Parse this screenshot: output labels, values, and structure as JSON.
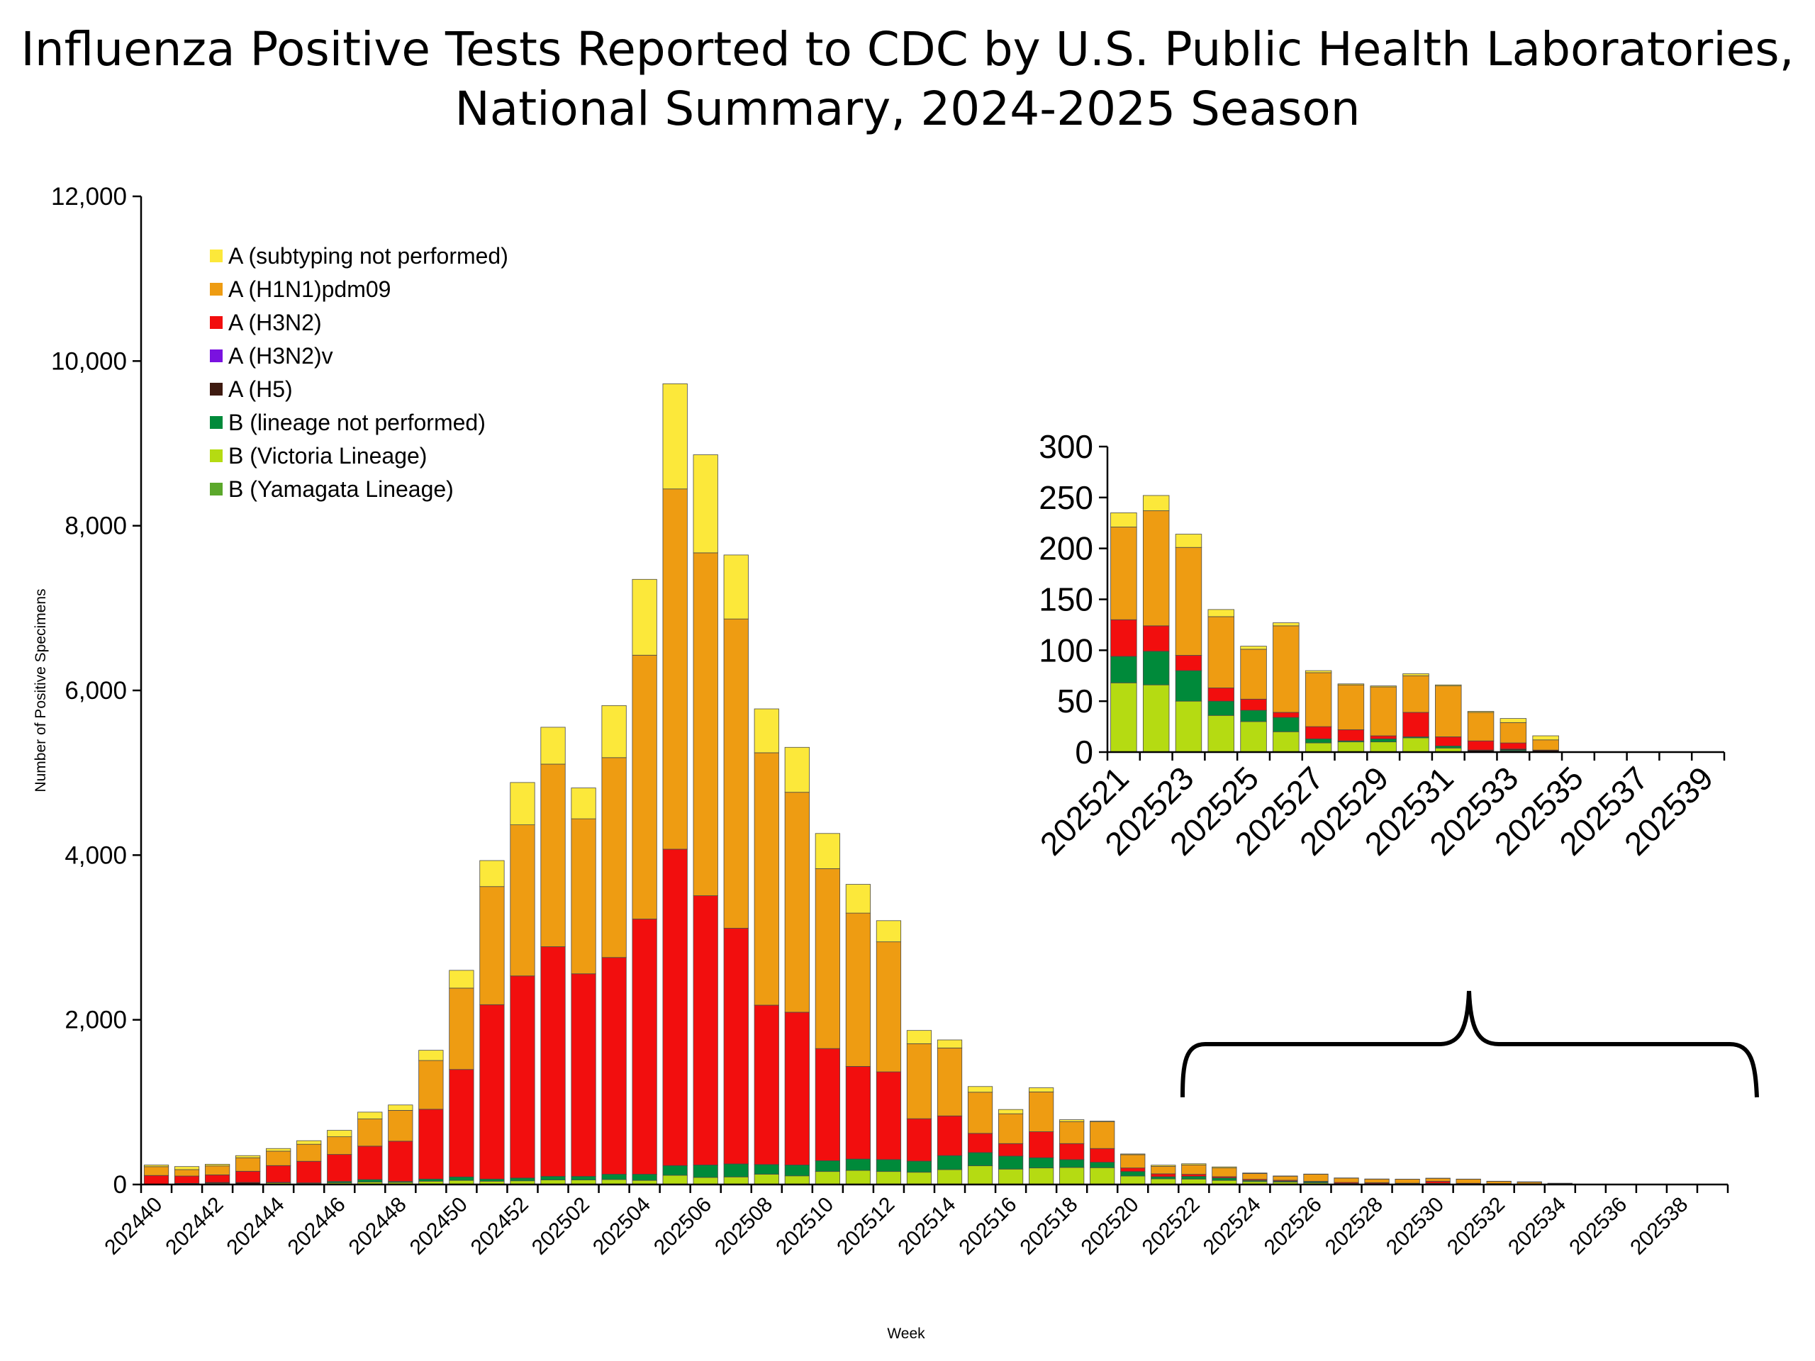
{
  "title": {
    "line1": "Influenza Positive Tests Reported to CDC by U.S. Public Health Laboratories,",
    "line2": "National Summary, 2024-2025 Season"
  },
  "chart_data": [
    {
      "type": "bar",
      "stacked": true,
      "xlabel": "Week",
      "ylabel": "Number of Positive Specimens",
      "ylim": [
        0,
        12000
      ],
      "yticks": [
        0,
        2000,
        4000,
        6000,
        8000,
        10000,
        12000
      ],
      "legend_position": "top-left",
      "grid": false,
      "categories": [
        "202440",
        "202441",
        "202442",
        "202443",
        "202444",
        "202445",
        "202446",
        "202447",
        "202448",
        "202449",
        "202450",
        "202451",
        "202452",
        "202501",
        "202502",
        "202503",
        "202504",
        "202505",
        "202506",
        "202507",
        "202508",
        "202509",
        "202510",
        "202511",
        "202512",
        "202513",
        "202514",
        "202515",
        "202516",
        "202517",
        "202518",
        "202519",
        "202520",
        "202521",
        "202522",
        "202523",
        "202524",
        "202525",
        "202526",
        "202527",
        "202528",
        "202529",
        "202530",
        "202531",
        "202532",
        "202533",
        "202534",
        "202535",
        "202536",
        "202537",
        "202538",
        "202539"
      ],
      "series": [
        {
          "name": "B (Victoria Lineage)",
          "color": "#B5DB12",
          "values": [
            3,
            4,
            15,
            5,
            20,
            15,
            20,
            30,
            25,
            40,
            50,
            40,
            45,
            55,
            55,
            60,
            50,
            112,
            86,
            92,
            125,
            105,
            158,
            171,
            158,
            149,
            181,
            227,
            187,
            201,
            207,
            204,
            103,
            68,
            66,
            50,
            36,
            30,
            20,
            9,
            10,
            10,
            14,
            4,
            0,
            1,
            0,
            0,
            0,
            0,
            0,
            0
          ]
        },
        {
          "name": "B (Yamagata Lineage)",
          "color": "#5BA82B",
          "values": [
            0,
            0,
            0,
            0,
            0,
            0,
            0,
            0,
            0,
            0,
            0,
            0,
            0,
            0,
            0,
            0,
            0,
            0,
            0,
            0,
            0,
            0,
            0,
            0,
            0,
            0,
            0,
            0,
            0,
            0,
            0,
            0,
            0,
            0,
            0,
            0,
            0,
            0,
            0,
            0,
            0,
            0,
            0,
            0,
            0,
            0,
            0,
            0,
            0,
            0,
            0,
            0
          ]
        },
        {
          "name": "B (lineage not performed)",
          "color": "#008A3A",
          "values": [
            2,
            0,
            0,
            0,
            6,
            5,
            17,
            30,
            12,
            26,
            42,
            26,
            34,
            44,
            44,
            65,
            75,
            118,
            151,
            158,
            118,
            132,
            131,
            138,
            145,
            135,
            170,
            161,
            158,
            124,
            95,
            66,
            55,
            26,
            33,
            30,
            14,
            11,
            14,
            4,
            1,
            3,
            1,
            2,
            0,
            1,
            0,
            0,
            0,
            0,
            0,
            0
          ]
        },
        {
          "name": "A (H5)",
          "color": "#3E1A10",
          "values": [
            0,
            10,
            10,
            20,
            0,
            0,
            0,
            0,
            0,
            0,
            0,
            0,
            0,
            0,
            0,
            0,
            0,
            0,
            0,
            0,
            0,
            0,
            0,
            0,
            0,
            0,
            0,
            0,
            0,
            0,
            0,
            0,
            0,
            0,
            0,
            0,
            0,
            0,
            0,
            0,
            0,
            0,
            0,
            0,
            2,
            1,
            2,
            0,
            0,
            0,
            0,
            0
          ]
        },
        {
          "name": "A (H3N2)v",
          "color": "#7A12E0",
          "values": [
            0,
            0,
            0,
            0,
            0,
            0,
            0,
            0,
            0,
            0,
            0,
            0,
            0,
            0,
            0,
            0,
            0,
            0,
            0,
            0,
            0,
            0,
            0,
            0,
            0,
            0,
            0,
            0,
            0,
            0,
            0,
            0,
            0,
            0,
            0,
            0,
            0,
            0,
            0,
            0,
            0,
            0,
            0,
            0,
            0,
            0,
            0,
            0,
            0,
            0,
            0,
            0
          ]
        },
        {
          "name": "A (H3N2)",
          "color": "#F20E0E",
          "values": [
            105,
            89,
            92,
            136,
            204,
            262,
            328,
            406,
            489,
            848,
            1305,
            2118,
            2454,
            2789,
            2460,
            2632,
            3099,
            3842,
            3270,
            2862,
            1935,
            1855,
            1362,
            1125,
            1065,
            515,
            482,
            233,
            152,
            316,
            195,
            167,
            43,
            36,
            25,
            15,
            13,
            11,
            5,
            12,
            11,
            3,
            24,
            9,
            9,
            6,
            0,
            0,
            0,
            0,
            0,
            0
          ]
        },
        {
          "name": "A (H1N1)pdm09",
          "color": "#EE9C12",
          "values": [
            107,
            78,
            109,
            164,
            175,
            207,
            215,
            330,
            374,
            592,
            988,
            1434,
            1835,
            2217,
            1882,
            2427,
            3204,
            4375,
            4164,
            3756,
            3065,
            2671,
            2185,
            1862,
            1579,
            911,
            825,
            500,
            362,
            483,
            267,
            324,
            161,
            91,
            113,
            106,
            70,
            49,
            85,
            53,
            44,
            48,
            36,
            50,
            28,
            20,
            10,
            0,
            0,
            0,
            0,
            0
          ]
        },
        {
          "name": "A (subtyping not performed)",
          "color": "#FCE83A",
          "values": [
            20,
            37,
            20,
            26,
            32,
            43,
            78,
            83,
            66,
            124,
            216,
            316,
            514,
            448,
            375,
            632,
            921,
            1277,
            1191,
            777,
            533,
            546,
            427,
            349,
            257,
            161,
            98,
            69,
            52,
            51,
            23,
            9,
            9,
            14,
            15,
            13,
            7,
            3,
            3,
            2,
            1,
            1,
            2,
            1,
            1,
            4,
            4,
            0,
            0,
            0,
            0,
            0
          ]
        }
      ],
      "legend_order": [
        "A (subtyping not performed)",
        "A (H1N1)pdm09",
        "A (H3N2)",
        "A (H3N2)v",
        "A (H5)",
        "B (lineage not performed)",
        "B (Victoria Lineage)",
        "B (Yamagata Lineage)"
      ]
    },
    {
      "type": "bar",
      "stacked": true,
      "inset_of": "main",
      "ylim": [
        0,
        300
      ],
      "yticks": [
        0,
        50,
        100,
        150,
        200,
        250,
        300
      ],
      "categories": [
        "202521",
        "202522",
        "202523",
        "202524",
        "202525",
        "202526",
        "202527",
        "202528",
        "202529",
        "202530",
        "202531",
        "202532",
        "202533",
        "202534",
        "202535",
        "202536",
        "202537",
        "202538",
        "202539"
      ]
    }
  ]
}
